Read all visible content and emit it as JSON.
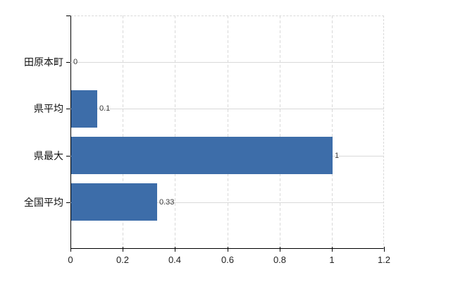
{
  "chart_data": {
    "type": "bar",
    "orientation": "horizontal",
    "title": "",
    "xlabel": "",
    "ylabel": "",
    "categories": [
      "田原本町",
      "県平均",
      "県最大",
      "全国平均"
    ],
    "values": [
      0,
      0.1,
      1,
      0.33
    ],
    "data_labels": [
      "0",
      "0.1",
      "1",
      "0.33"
    ],
    "x_ticks": [
      {
        "value": 0,
        "label": "0"
      },
      {
        "value": 0.2,
        "label": "0.2"
      },
      {
        "value": 0.4,
        "label": "0.4"
      },
      {
        "value": 0.6,
        "label": "0.6"
      },
      {
        "value": 0.8,
        "label": "0.8"
      },
      {
        "value": 1,
        "label": "1"
      },
      {
        "value": 1.2,
        "label": "1.2"
      }
    ],
    "xlim": [
      0,
      1.2
    ],
    "grid": true,
    "legend": false,
    "colors": {
      "bar": "#3d6da9",
      "gridline": "#d9d9d9",
      "axis": "#000000",
      "data_label": "#3a3a3a",
      "tick_label": "#222222",
      "category_label": "#111111",
      "background": "#ffffff"
    }
  }
}
